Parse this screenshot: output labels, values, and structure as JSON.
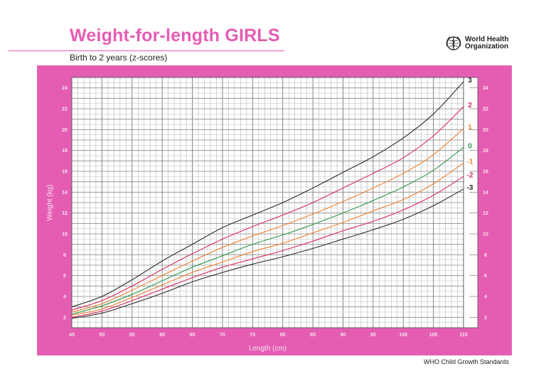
{
  "header": {
    "title": "Weight-for-length GIRLS",
    "subtitle": "Birth to 2 years (z-scores)",
    "org_line1": "World Health",
    "org_line2": "Organization",
    "logo_icon": "who-emblem-icon"
  },
  "footer": {
    "text": "WHO Child Growth Standards"
  },
  "colors": {
    "brand_pink": "#e45db3",
    "title_pink": "#e65cb4",
    "sd3": "#2b2b2b",
    "sd2": "#d9285a",
    "sd1": "#f07f2c",
    "sd0": "#2e9a4a"
  },
  "chart_data": {
    "type": "line",
    "title": "Weight-for-length GIRLS",
    "subtitle": "Birth to 2 years (z-scores)",
    "xlabel": "Length (cm)",
    "ylabel": "Weight (kg)",
    "xlim": [
      45,
      110
    ],
    "ylim": [
      1,
      25
    ],
    "x_ticks": [
      45,
      50,
      55,
      60,
      65,
      70,
      75,
      80,
      85,
      90,
      95,
      100,
      105,
      110
    ],
    "y_ticks": [
      2,
      4,
      6,
      8,
      10,
      12,
      14,
      16,
      18,
      20,
      22,
      24
    ],
    "grid": true,
    "legend_position": "right end of curves",
    "x": [
      45,
      50,
      55,
      60,
      65,
      70,
      75,
      80,
      85,
      90,
      95,
      100,
      105,
      110
    ],
    "series": [
      {
        "name": "3",
        "color": "#2b2b2b",
        "values": [
          3.0,
          4.0,
          5.6,
          7.4,
          9.0,
          10.6,
          11.8,
          13.0,
          14.4,
          15.9,
          17.4,
          19.2,
          21.5,
          24.6
        ]
      },
      {
        "name": "2",
        "color": "#d9285a",
        "values": [
          2.7,
          3.6,
          5.0,
          6.6,
          8.1,
          9.5,
          10.7,
          11.8,
          13.0,
          14.4,
          15.8,
          17.3,
          19.4,
          22.2
        ]
      },
      {
        "name": "1",
        "color": "#f07f2c",
        "values": [
          2.5,
          3.3,
          4.6,
          6.0,
          7.4,
          8.7,
          9.8,
          10.8,
          11.9,
          13.1,
          14.4,
          15.8,
          17.6,
          20.1
        ]
      },
      {
        "name": "0",
        "color": "#2e9a4a",
        "values": [
          2.3,
          3.1,
          4.2,
          5.5,
          6.8,
          7.9,
          9.0,
          9.9,
          10.9,
          12.0,
          13.2,
          14.5,
          16.1,
          18.3
        ]
      },
      {
        "name": "-1",
        "color": "#f07f2c",
        "values": [
          2.2,
          2.8,
          3.9,
          5.1,
          6.3,
          7.3,
          8.3,
          9.1,
          10.1,
          11.1,
          12.2,
          13.3,
          14.8,
          16.8
        ]
      },
      {
        "name": "-2",
        "color": "#d9285a",
        "values": [
          2.0,
          2.6,
          3.6,
          4.7,
          5.8,
          6.8,
          7.6,
          8.4,
          9.3,
          10.3,
          11.2,
          12.3,
          13.7,
          15.5
        ]
      },
      {
        "name": "-3",
        "color": "#2b2b2b",
        "values": [
          1.9,
          2.4,
          3.3,
          4.3,
          5.4,
          6.3,
          7.1,
          7.8,
          8.6,
          9.5,
          10.4,
          11.4,
          12.7,
          14.3
        ]
      }
    ]
  }
}
